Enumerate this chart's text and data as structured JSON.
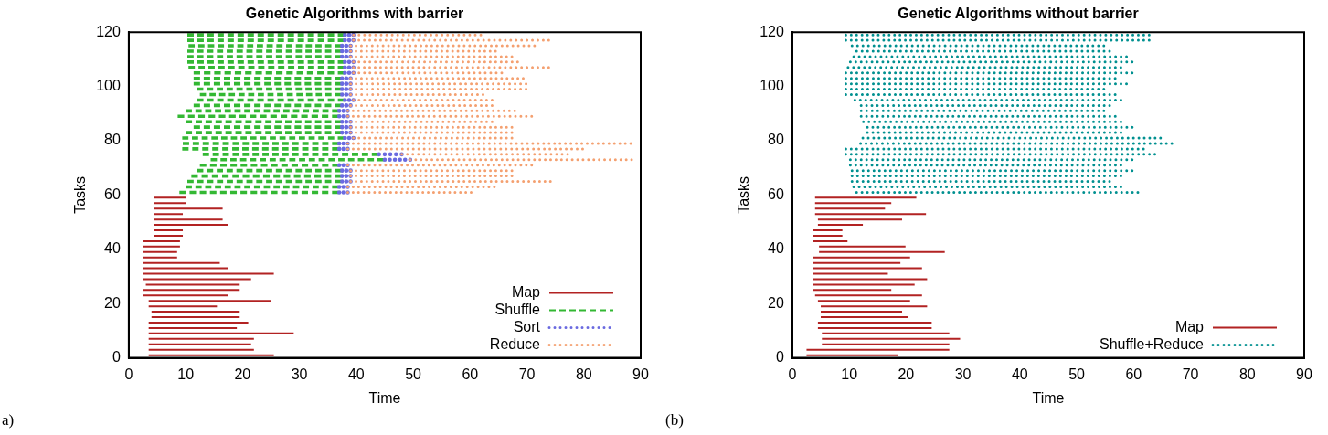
{
  "chart_data": [
    {
      "type": "line",
      "title": "Genetic Algorithms with barrier",
      "xlabel": "Time",
      "ylabel": "Tasks",
      "annotations": [
        "a)"
      ],
      "xlim": [
        0,
        90
      ],
      "xticks": [
        0,
        10,
        20,
        30,
        40,
        50,
        60,
        70,
        80,
        90
      ],
      "ylim": [
        0,
        120
      ],
      "yticks": [
        0,
        20,
        40,
        60,
        80,
        100,
        120
      ],
      "grid": false,
      "legend": "bottom right",
      "series": [
        {
          "name": "Map",
          "color": "#b22222",
          "line_style": "solid",
          "x": [
            3.5,
            25.5
          ],
          "values": [
            1,
            1
          ]
        },
        {
          "color": "#b22222",
          "line_style": "solid",
          "x": [
            3.5,
            22
          ],
          "values": [
            3,
            3
          ]
        },
        {
          "color": "#b22222",
          "line_style": "solid",
          "x": [
            3.5,
            21.5
          ],
          "values": [
            5,
            5
          ]
        },
        {
          "color": "#b22222",
          "line_style": "solid",
          "x": [
            3.5,
            22
          ],
          "values": [
            7,
            7
          ]
        },
        {
          "color": "#b22222",
          "line_style": "solid",
          "x": [
            3.5,
            29
          ],
          "values": [
            9,
            9
          ]
        },
        {
          "color": "#b22222",
          "line_style": "solid",
          "x": [
            3.5,
            19
          ],
          "values": [
            11,
            11
          ]
        },
        {
          "color": "#b22222",
          "line_style": "solid",
          "x": [
            3.5,
            21
          ],
          "values": [
            13,
            13
          ]
        },
        {
          "color": "#b22222",
          "line_style": "solid",
          "x": [
            4,
            19.5
          ],
          "values": [
            15,
            15
          ]
        },
        {
          "color": "#b22222",
          "line_style": "solid",
          "x": [
            4,
            19.5
          ],
          "values": [
            17,
            17
          ]
        },
        {
          "color": "#b22222",
          "line_style": "solid",
          "x": [
            3.5,
            15.5
          ],
          "values": [
            19,
            19
          ]
        },
        {
          "color": "#b22222",
          "line_style": "solid",
          "x": [
            3.5,
            25
          ],
          "values": [
            21,
            21
          ]
        },
        {
          "color": "#b22222",
          "line_style": "solid",
          "x": [
            2.5,
            17.5
          ],
          "values": [
            23,
            23
          ]
        },
        {
          "color": "#b22222",
          "line_style": "solid",
          "x": [
            2.5,
            19.5
          ],
          "values": [
            25,
            25
          ]
        },
        {
          "color": "#b22222",
          "line_style": "solid",
          "x": [
            3,
            19.5
          ],
          "values": [
            27,
            27
          ]
        },
        {
          "color": "#b22222",
          "line_style": "solid",
          "x": [
            2.5,
            21.5
          ],
          "values": [
            29,
            29
          ]
        },
        {
          "color": "#b22222",
          "line_style": "solid",
          "x": [
            2.5,
            25.5
          ],
          "values": [
            31,
            31
          ]
        },
        {
          "color": "#b22222",
          "line_style": "solid",
          "x": [
            2.5,
            17.5
          ],
          "values": [
            33,
            33
          ]
        },
        {
          "color": "#b22222",
          "line_style": "solid",
          "x": [
            2.5,
            16
          ],
          "values": [
            35,
            35
          ]
        },
        {
          "color": "#b22222",
          "line_style": "solid",
          "x": [
            2.5,
            8.5
          ],
          "values": [
            37,
            37
          ]
        },
        {
          "color": "#b22222",
          "line_style": "solid",
          "x": [
            2.5,
            8.5
          ],
          "values": [
            39,
            39
          ]
        },
        {
          "color": "#b22222",
          "line_style": "solid",
          "x": [
            2.5,
            9
          ],
          "values": [
            41,
            41
          ]
        },
        {
          "color": "#b22222",
          "line_style": "solid",
          "x": [
            2.5,
            9
          ],
          "values": [
            43,
            43
          ]
        },
        {
          "color": "#b22222",
          "line_style": "solid",
          "x": [
            4.5,
            9.5
          ],
          "values": [
            45,
            45
          ]
        },
        {
          "color": "#b22222",
          "line_style": "solid",
          "x": [
            4.5,
            9.5
          ],
          "values": [
            47,
            47
          ]
        },
        {
          "color": "#b22222",
          "line_style": "solid",
          "x": [
            4.5,
            17.5
          ],
          "values": [
            49,
            49
          ]
        },
        {
          "color": "#b22222",
          "line_style": "solid",
          "x": [
            4.5,
            16.5
          ],
          "values": [
            51,
            51
          ]
        },
        {
          "color": "#b22222",
          "line_style": "solid",
          "x": [
            4.5,
            9.5
          ],
          "values": [
            53,
            53
          ]
        },
        {
          "color": "#b22222",
          "line_style": "solid",
          "x": [
            4.5,
            16.5
          ],
          "values": [
            55,
            55
          ]
        },
        {
          "color": "#b22222",
          "line_style": "solid",
          "x": [
            4.5,
            10
          ],
          "values": [
            57,
            57
          ]
        },
        {
          "color": "#b22222",
          "line_style": "solid",
          "x": [
            4.5,
            10
          ],
          "values": [
            59,
            59
          ]
        },
        {
          "name": "Shuffle",
          "color": "#33b833",
          "line_style": "dashed",
          "x": [
            8.9,
            37
          ],
          "values": [
            61,
            61
          ]
        },
        {
          "color": "#33b833",
          "line_style": "dashed",
          "x": [
            10,
            37
          ],
          "values": [
            63,
            63
          ]
        },
        {
          "color": "#33b833",
          "line_style": "dashed",
          "x": [
            10.3,
            37.5
          ],
          "values": [
            65,
            65
          ]
        },
        {
          "color": "#33b833",
          "line_style": "dashed",
          "x": [
            11,
            37.5
          ],
          "values": [
            67,
            67
          ]
        },
        {
          "color": "#33b833",
          "line_style": "dashed",
          "x": [
            12,
            37.5
          ],
          "values": [
            69,
            69
          ]
        },
        {
          "color": "#33b833",
          "line_style": "dashed",
          "x": [
            12.5,
            37
          ],
          "values": [
            71,
            71
          ]
        },
        {
          "color": "#33b833",
          "line_style": "dashed",
          "x": [
            14.4,
            45
          ],
          "values": [
            73,
            73
          ]
        },
        {
          "color": "#33b833",
          "line_style": "dashed",
          "x": [
            13,
            44
          ],
          "values": [
            75,
            75
          ]
        },
        {
          "color": "#33b833",
          "line_style": "dashed",
          "x": [
            9.4,
            37
          ],
          "values": [
            77,
            77
          ]
        },
        {
          "color": "#33b833",
          "line_style": "dashed",
          "x": [
            9.5,
            37
          ],
          "values": [
            79,
            79
          ]
        },
        {
          "color": "#33b833",
          "line_style": "dashed",
          "x": [
            9.4,
            38
          ],
          "values": [
            81,
            81
          ]
        },
        {
          "color": "#33b833",
          "line_style": "dashed",
          "x": [
            10,
            37.5
          ],
          "values": [
            83,
            83
          ]
        },
        {
          "color": "#33b833",
          "line_style": "dashed",
          "x": [
            11.4,
            37.5
          ],
          "values": [
            85,
            85
          ]
        },
        {
          "color": "#33b833",
          "line_style": "dashed",
          "x": [
            10,
            37.5
          ],
          "values": [
            87,
            87
          ]
        },
        {
          "color": "#33b833",
          "line_style": "dashed",
          "x": [
            8.6,
            37
          ],
          "values": [
            89,
            89
          ]
        },
        {
          "color": "#33b833",
          "line_style": "dashed",
          "x": [
            10,
            37
          ],
          "values": [
            91,
            91
          ]
        },
        {
          "color": "#33b833",
          "line_style": "dashed",
          "x": [
            11.4,
            37.5
          ],
          "values": [
            93,
            93
          ]
        },
        {
          "color": "#33b833",
          "line_style": "dashed",
          "x": [
            12,
            38
          ],
          "values": [
            95,
            95
          ]
        },
        {
          "color": "#33b833",
          "line_style": "dashed",
          "x": [
            12.5,
            37.5
          ],
          "values": [
            97,
            97
          ]
        },
        {
          "color": "#33b833",
          "line_style": "dashed",
          "x": [
            12,
            37.5
          ],
          "values": [
            99,
            99
          ]
        },
        {
          "color": "#33b833",
          "line_style": "dashed",
          "x": [
            11.4,
            37.5
          ],
          "values": [
            101,
            101
          ]
        },
        {
          "color": "#33b833",
          "line_style": "dashed",
          "x": [
            11.4,
            37.5
          ],
          "values": [
            103,
            103
          ]
        },
        {
          "color": "#33b833",
          "line_style": "dashed",
          "x": [
            11.4,
            38
          ],
          "values": [
            105,
            105
          ]
        },
        {
          "color": "#33b833",
          "line_style": "dashed",
          "x": [
            10.5,
            38
          ],
          "values": [
            107,
            107
          ]
        },
        {
          "color": "#33b833",
          "line_style": "dashed",
          "x": [
            10.3,
            38
          ],
          "values": [
            109,
            109
          ]
        },
        {
          "color": "#33b833",
          "line_style": "dashed",
          "x": [
            10.3,
            37.5
          ],
          "values": [
            111,
            111
          ]
        },
        {
          "color": "#33b833",
          "line_style": "dashed",
          "x": [
            10.3,
            37.5
          ],
          "values": [
            113,
            113
          ]
        },
        {
          "color": "#33b833",
          "line_style": "dashed",
          "x": [
            10.5,
            37.5
          ],
          "values": [
            115,
            115
          ]
        },
        {
          "color": "#33b833",
          "line_style": "dashed",
          "x": [
            10.3,
            38
          ],
          "values": [
            117,
            117
          ]
        },
        {
          "color": "#33b833",
          "line_style": "dashed",
          "x": [
            10.3,
            38
          ],
          "values": [
            119,
            119
          ]
        },
        {
          "name": "Sort",
          "color": "#6a6ae0",
          "line_style": "dotted",
          "x": [
            37,
            38.5
          ],
          "values": [
            61,
            61
          ]
        },
        {
          "color": "#6a6ae0",
          "line_style": "dotted",
          "x": [
            37,
            38.5
          ],
          "values": [
            63,
            63
          ]
        },
        {
          "color": "#6a6ae0",
          "line_style": "dotted",
          "x": [
            37.5,
            39
          ],
          "values": [
            65,
            65
          ]
        },
        {
          "color": "#6a6ae0",
          "line_style": "dotted",
          "x": [
            37.5,
            39
          ],
          "values": [
            67,
            67
          ]
        },
        {
          "color": "#6a6ae0",
          "line_style": "dotted",
          "x": [
            37.5,
            39
          ],
          "values": [
            69,
            69
          ]
        },
        {
          "color": "#6a6ae0",
          "line_style": "dotted",
          "x": [
            37,
            38.5
          ],
          "values": [
            71,
            71
          ]
        },
        {
          "color": "#6a6ae0",
          "line_style": "dotted",
          "x": [
            45,
            49.5
          ],
          "values": [
            73,
            73
          ]
        },
        {
          "color": "#6a6ae0",
          "line_style": "dotted",
          "x": [
            44,
            48
          ],
          "values": [
            75,
            75
          ]
        },
        {
          "color": "#6a6ae0",
          "line_style": "dotted",
          "x": [
            37,
            38.5
          ],
          "values": [
            77,
            77
          ]
        },
        {
          "color": "#6a6ae0",
          "line_style": "dotted",
          "x": [
            37,
            38.5
          ],
          "values": [
            79,
            79
          ]
        },
        {
          "color": "#6a6ae0",
          "line_style": "dotted",
          "x": [
            38,
            39.5
          ],
          "values": [
            81,
            81
          ]
        },
        {
          "color": "#6a6ae0",
          "line_style": "dotted",
          "x": [
            37.5,
            39
          ],
          "values": [
            83,
            83
          ]
        },
        {
          "color": "#6a6ae0",
          "line_style": "dotted",
          "x": [
            37.5,
            39
          ],
          "values": [
            85,
            85
          ]
        },
        {
          "color": "#6a6ae0",
          "line_style": "dotted",
          "x": [
            37.5,
            39
          ],
          "values": [
            87,
            87
          ]
        },
        {
          "color": "#6a6ae0",
          "line_style": "dotted",
          "x": [
            37,
            38.5
          ],
          "values": [
            89,
            89
          ]
        },
        {
          "color": "#6a6ae0",
          "line_style": "dotted",
          "x": [
            37,
            38.5
          ],
          "values": [
            91,
            91
          ]
        },
        {
          "color": "#6a6ae0",
          "line_style": "dotted",
          "x": [
            37.5,
            39
          ],
          "values": [
            93,
            93
          ]
        },
        {
          "color": "#6a6ae0",
          "line_style": "dotted",
          "x": [
            38,
            39.5
          ],
          "values": [
            95,
            95
          ]
        },
        {
          "color": "#6a6ae0",
          "line_style": "dotted",
          "x": [
            37.5,
            39
          ],
          "values": [
            97,
            97
          ]
        },
        {
          "color": "#6a6ae0",
          "line_style": "dotted",
          "x": [
            37.5,
            39
          ],
          "values": [
            99,
            99
          ]
        },
        {
          "color": "#6a6ae0",
          "line_style": "dotted",
          "x": [
            37.5,
            39
          ],
          "values": [
            101,
            101
          ]
        },
        {
          "color": "#6a6ae0",
          "line_style": "dotted",
          "x": [
            37.5,
            39
          ],
          "values": [
            103,
            103
          ]
        },
        {
          "color": "#6a6ae0",
          "line_style": "dotted",
          "x": [
            38,
            39.5
          ],
          "values": [
            105,
            105
          ]
        },
        {
          "color": "#6a6ae0",
          "line_style": "dotted",
          "x": [
            38,
            39.5
          ],
          "values": [
            107,
            107
          ]
        },
        {
          "color": "#6a6ae0",
          "line_style": "dotted",
          "x": [
            38,
            39.5
          ],
          "values": [
            109,
            109
          ]
        },
        {
          "color": "#6a6ae0",
          "line_style": "dotted",
          "x": [
            37.5,
            39
          ],
          "values": [
            111,
            111
          ]
        },
        {
          "color": "#6a6ae0",
          "line_style": "dotted",
          "x": [
            37.5,
            39
          ],
          "values": [
            113,
            113
          ]
        },
        {
          "color": "#6a6ae0",
          "line_style": "dotted",
          "x": [
            37.5,
            39
          ],
          "values": [
            115,
            115
          ]
        },
        {
          "color": "#6a6ae0",
          "line_style": "dotted",
          "x": [
            38,
            39.5
          ],
          "values": [
            117,
            117
          ]
        },
        {
          "color": "#6a6ae0",
          "line_style": "dotted",
          "x": [
            38,
            39.5
          ],
          "values": [
            119,
            119
          ]
        },
        {
          "name": "Reduce",
          "color": "#f4a070",
          "line_style": "dotted",
          "x": [
            38.5,
            60.3
          ],
          "values": [
            61,
            61
          ]
        },
        {
          "color": "#f4a070",
          "line_style": "dotted",
          "x": [
            38.5,
            64.4
          ],
          "values": [
            63,
            63
          ]
        },
        {
          "color": "#f4a070",
          "line_style": "dotted",
          "x": [
            39,
            74.3
          ],
          "values": [
            65,
            65
          ]
        },
        {
          "color": "#f4a070",
          "line_style": "dotted",
          "x": [
            39,
            67.5
          ],
          "values": [
            67,
            67
          ]
        },
        {
          "color": "#f4a070",
          "line_style": "dotted",
          "x": [
            39,
            67.5
          ],
          "values": [
            69,
            69
          ]
        },
        {
          "color": "#f4a070",
          "line_style": "dotted",
          "x": [
            38.5,
            71
          ],
          "values": [
            71,
            71
          ]
        },
        {
          "color": "#f4a070",
          "line_style": "dotted",
          "x": [
            49.5,
            88.6
          ],
          "values": [
            73,
            73
          ]
        },
        {
          "color": "#f4a070",
          "line_style": "dotted",
          "x": [
            48,
            77.3
          ],
          "values": [
            75,
            75
          ]
        },
        {
          "color": "#f4a070",
          "line_style": "dotted",
          "x": [
            38.5,
            80
          ],
          "values": [
            77,
            77
          ]
        },
        {
          "color": "#f4a070",
          "line_style": "dotted",
          "x": [
            38.5,
            88.5
          ],
          "values": [
            79,
            79
          ]
        },
        {
          "color": "#f4a070",
          "line_style": "dotted",
          "x": [
            39.5,
            67.5
          ],
          "values": [
            81,
            81
          ]
        },
        {
          "color": "#f4a070",
          "line_style": "dotted",
          "x": [
            39,
            67.5
          ],
          "values": [
            83,
            83
          ]
        },
        {
          "color": "#f4a070",
          "line_style": "dotted",
          "x": [
            39,
            67.5
          ],
          "values": [
            85,
            85
          ]
        },
        {
          "color": "#f4a070",
          "line_style": "dotted",
          "x": [
            39,
            64
          ],
          "values": [
            87,
            87
          ]
        },
        {
          "color": "#f4a070",
          "line_style": "dotted",
          "x": [
            38.5,
            71
          ],
          "values": [
            89,
            89
          ]
        },
        {
          "color": "#f4a070",
          "line_style": "dotted",
          "x": [
            38.5,
            68
          ],
          "values": [
            91,
            91
          ]
        },
        {
          "color": "#f4a070",
          "line_style": "dotted",
          "x": [
            39,
            64
          ],
          "values": [
            93,
            93
          ]
        },
        {
          "color": "#f4a070",
          "line_style": "dotted",
          "x": [
            39.5,
            64
          ],
          "values": [
            95,
            95
          ]
        },
        {
          "color": "#f4a070",
          "line_style": "dotted",
          "x": [
            39,
            62.4
          ],
          "values": [
            97,
            97
          ]
        },
        {
          "color": "#f4a070",
          "line_style": "dotted",
          "x": [
            39,
            70
          ],
          "values": [
            99,
            99
          ]
        },
        {
          "color": "#f4a070",
          "line_style": "dotted",
          "x": [
            39,
            70
          ],
          "values": [
            101,
            101
          ]
        },
        {
          "color": "#f4a070",
          "line_style": "dotted",
          "x": [
            39,
            69.5
          ],
          "values": [
            103,
            103
          ]
        },
        {
          "color": "#f4a070",
          "line_style": "dotted",
          "x": [
            39.5,
            65.7
          ],
          "values": [
            105,
            105
          ]
        },
        {
          "color": "#f4a070",
          "line_style": "dotted",
          "x": [
            39.5,
            74
          ],
          "values": [
            107,
            107
          ]
        },
        {
          "color": "#f4a070",
          "line_style": "dotted",
          "x": [
            39.5,
            68.5
          ],
          "values": [
            109,
            109
          ]
        },
        {
          "color": "#f4a070",
          "line_style": "dotted",
          "x": [
            39,
            67.5
          ],
          "values": [
            111,
            111
          ]
        },
        {
          "color": "#f4a070",
          "line_style": "dotted",
          "x": [
            39,
            64.6
          ],
          "values": [
            113,
            113
          ]
        },
        {
          "color": "#f4a070",
          "line_style": "dotted",
          "x": [
            39,
            71.5
          ],
          "values": [
            115,
            115
          ]
        },
        {
          "color": "#f4a070",
          "line_style": "dotted",
          "x": [
            39.5,
            74
          ],
          "values": [
            117,
            117
          ]
        },
        {
          "color": "#f4a070",
          "line_style": "dotted",
          "x": [
            39.5,
            62
          ],
          "values": [
            119,
            119
          ]
        }
      ]
    },
    {
      "type": "line",
      "title": "Genetic Algorithms without barrier",
      "xlabel": "Time",
      "ylabel": "Tasks",
      "annotations": [
        "(b)"
      ],
      "xlim": [
        0,
        90
      ],
      "xticks": [
        0,
        10,
        20,
        30,
        40,
        50,
        60,
        70,
        80,
        90
      ],
      "ylim": [
        0,
        120
      ],
      "yticks": [
        0,
        20,
        40,
        60,
        80,
        100,
        120
      ],
      "grid": false,
      "legend": "bottom right",
      "series": [
        {
          "name": "Map",
          "color": "#b22222",
          "line_style": "solid",
          "x": [
            2.5,
            18.5
          ],
          "values": [
            1,
            1
          ]
        },
        {
          "color": "#b22222",
          "line_style": "solid",
          "x": [
            2.5,
            27.6
          ],
          "values": [
            3,
            3
          ]
        },
        {
          "color": "#b22222",
          "line_style": "solid",
          "x": [
            5.2,
            27.6
          ],
          "values": [
            5,
            5
          ]
        },
        {
          "color": "#b22222",
          "line_style": "solid",
          "x": [
            5.2,
            29.5
          ],
          "values": [
            7,
            7
          ]
        },
        {
          "color": "#b22222",
          "line_style": "solid",
          "x": [
            5.2,
            27.6
          ],
          "values": [
            9,
            9
          ]
        },
        {
          "color": "#b22222",
          "line_style": "solid",
          "x": [
            4.5,
            24.5
          ],
          "values": [
            11,
            11
          ]
        },
        {
          "color": "#b22222",
          "line_style": "solid",
          "x": [
            4.5,
            24.5
          ],
          "values": [
            13,
            13
          ]
        },
        {
          "color": "#b22222",
          "line_style": "solid",
          "x": [
            5,
            20.4
          ],
          "values": [
            15,
            15
          ]
        },
        {
          "color": "#b22222",
          "line_style": "solid",
          "x": [
            5,
            19.3
          ],
          "values": [
            17,
            17
          ]
        },
        {
          "color": "#b22222",
          "line_style": "solid",
          "x": [
            5,
            23.7
          ],
          "values": [
            19,
            19
          ]
        },
        {
          "color": "#b22222",
          "line_style": "solid",
          "x": [
            4.5,
            20.7
          ],
          "values": [
            21,
            21
          ]
        },
        {
          "color": "#b22222",
          "line_style": "solid",
          "x": [
            4,
            22.8
          ],
          "values": [
            23,
            23
          ]
        },
        {
          "color": "#b22222",
          "line_style": "solid",
          "x": [
            3.6,
            17.4
          ],
          "values": [
            25,
            25
          ]
        },
        {
          "color": "#b22222",
          "line_style": "solid",
          "x": [
            3.6,
            21.5
          ],
          "values": [
            27,
            27
          ]
        },
        {
          "color": "#b22222",
          "line_style": "solid",
          "x": [
            3.6,
            23.7
          ],
          "values": [
            29,
            29
          ]
        },
        {
          "color": "#b22222",
          "line_style": "solid",
          "x": [
            3.6,
            16.8
          ],
          "values": [
            31,
            31
          ]
        },
        {
          "color": "#b22222",
          "line_style": "solid",
          "x": [
            3.6,
            22.8
          ],
          "values": [
            33,
            33
          ]
        },
        {
          "color": "#b22222",
          "line_style": "solid",
          "x": [
            3.6,
            19
          ],
          "values": [
            35,
            35
          ]
        },
        {
          "color": "#b22222",
          "line_style": "solid",
          "x": [
            3.6,
            20.7
          ],
          "values": [
            37,
            37
          ]
        },
        {
          "color": "#b22222",
          "line_style": "solid",
          "x": [
            4.7,
            26.8
          ],
          "values": [
            39,
            39
          ]
        },
        {
          "color": "#b22222",
          "line_style": "solid",
          "x": [
            4.7,
            19.9
          ],
          "values": [
            41,
            41
          ]
        },
        {
          "color": "#b22222",
          "line_style": "solid",
          "x": [
            3.6,
            9.7
          ],
          "values": [
            43,
            43
          ]
        },
        {
          "color": "#b22222",
          "line_style": "solid",
          "x": [
            3.6,
            8.8
          ],
          "values": [
            45,
            45
          ]
        },
        {
          "color": "#b22222",
          "line_style": "solid",
          "x": [
            3.6,
            8.8
          ],
          "values": [
            47,
            47
          ]
        },
        {
          "color": "#b22222",
          "line_style": "solid",
          "x": [
            4.5,
            12.4
          ],
          "values": [
            49,
            49
          ]
        },
        {
          "color": "#b22222",
          "line_style": "solid",
          "x": [
            4.5,
            19.3
          ],
          "values": [
            51,
            51
          ]
        },
        {
          "color": "#b22222",
          "line_style": "solid",
          "x": [
            4,
            23.5
          ],
          "values": [
            53,
            53
          ]
        },
        {
          "color": "#b22222",
          "line_style": "solid",
          "x": [
            4,
            16.3
          ],
          "values": [
            55,
            55
          ]
        },
        {
          "color": "#b22222",
          "line_style": "solid",
          "x": [
            4,
            17.4
          ],
          "values": [
            57,
            57
          ]
        },
        {
          "color": "#b22222",
          "line_style": "solid",
          "x": [
            4,
            21.8
          ],
          "values": [
            59,
            59
          ]
        },
        {
          "name": "Shuffle+Reduce",
          "color": "#009090",
          "line_style": "dotted",
          "x": [
            11.3,
            61
          ],
          "values": [
            61,
            61
          ]
        },
        {
          "color": "#009090",
          "line_style": "dotted",
          "x": [
            10.8,
            58
          ],
          "values": [
            63,
            63
          ]
        },
        {
          "color": "#009090",
          "line_style": "dotted",
          "x": [
            10.5,
            56
          ],
          "values": [
            65,
            65
          ]
        },
        {
          "color": "#009090",
          "line_style": "dotted",
          "x": [
            10.5,
            58
          ],
          "values": [
            67,
            67
          ]
        },
        {
          "color": "#009090",
          "line_style": "dotted",
          "x": [
            10.5,
            60
          ],
          "values": [
            69,
            69
          ]
        },
        {
          "color": "#009090",
          "line_style": "dotted",
          "x": [
            10.2,
            58
          ],
          "values": [
            71,
            71
          ]
        },
        {
          "color": "#009090",
          "line_style": "dotted",
          "x": [
            10.2,
            60
          ],
          "values": [
            73,
            73
          ]
        },
        {
          "color": "#009090",
          "line_style": "dotted",
          "x": [
            9.4,
            64
          ],
          "values": [
            75,
            75
          ]
        },
        {
          "color": "#009090",
          "line_style": "dotted",
          "x": [
            9.4,
            62
          ],
          "values": [
            77,
            77
          ]
        },
        {
          "color": "#009090",
          "line_style": "dotted",
          "x": [
            12,
            67
          ],
          "values": [
            79,
            79
          ]
        },
        {
          "color": "#009090",
          "line_style": "dotted",
          "x": [
            12.4,
            65
          ],
          "values": [
            81,
            81
          ]
        },
        {
          "color": "#009090",
          "line_style": "dotted",
          "x": [
            13.2,
            58
          ],
          "values": [
            83,
            83
          ]
        },
        {
          "color": "#009090",
          "line_style": "dotted",
          "x": [
            13.2,
            60
          ],
          "values": [
            85,
            85
          ]
        },
        {
          "color": "#009090",
          "line_style": "dotted",
          "x": [
            12.5,
            58
          ],
          "values": [
            87,
            87
          ]
        },
        {
          "color": "#009090",
          "line_style": "dotted",
          "x": [
            12.1,
            57
          ],
          "values": [
            89,
            89
          ]
        },
        {
          "color": "#009090",
          "line_style": "dotted",
          "x": [
            12.1,
            55
          ],
          "values": [
            91,
            91
          ]
        },
        {
          "color": "#009090",
          "line_style": "dotted",
          "x": [
            12.1,
            56
          ],
          "values": [
            93,
            93
          ]
        },
        {
          "color": "#009090",
          "line_style": "dotted",
          "x": [
            11,
            58
          ],
          "values": [
            95,
            95
          ]
        },
        {
          "color": "#009090",
          "line_style": "dotted",
          "x": [
            9.4,
            57
          ],
          "values": [
            97,
            97
          ]
        },
        {
          "color": "#009090",
          "line_style": "dotted",
          "x": [
            9.4,
            55
          ],
          "values": [
            99,
            99
          ]
        },
        {
          "color": "#009090",
          "line_style": "dotted",
          "x": [
            9.4,
            59
          ],
          "values": [
            101,
            101
          ]
        },
        {
          "color": "#009090",
          "line_style": "dotted",
          "x": [
            9.4,
            57
          ],
          "values": [
            103,
            103
          ]
        },
        {
          "color": "#009090",
          "line_style": "dotted",
          "x": [
            9.4,
            60
          ],
          "values": [
            105,
            105
          ]
        },
        {
          "color": "#009090",
          "line_style": "dotted",
          "x": [
            9.8,
            58
          ],
          "values": [
            107,
            107
          ]
        },
        {
          "color": "#009090",
          "line_style": "dotted",
          "x": [
            10.2,
            60
          ],
          "values": [
            109,
            109
          ]
        },
        {
          "color": "#009090",
          "line_style": "dotted",
          "x": [
            10.8,
            59
          ],
          "values": [
            111,
            111
          ]
        },
        {
          "color": "#009090",
          "line_style": "dotted",
          "x": [
            11.3,
            56
          ],
          "values": [
            113,
            113
          ]
        },
        {
          "color": "#009090",
          "line_style": "dotted",
          "x": [
            10.5,
            55
          ],
          "values": [
            115,
            115
          ]
        },
        {
          "color": "#009090",
          "line_style": "dotted",
          "x": [
            9.4,
            63
          ],
          "values": [
            117,
            117
          ]
        },
        {
          "color": "#009090",
          "line_style": "dotted",
          "x": [
            9.4,
            63
          ],
          "values": [
            119,
            119
          ]
        }
      ]
    }
  ]
}
